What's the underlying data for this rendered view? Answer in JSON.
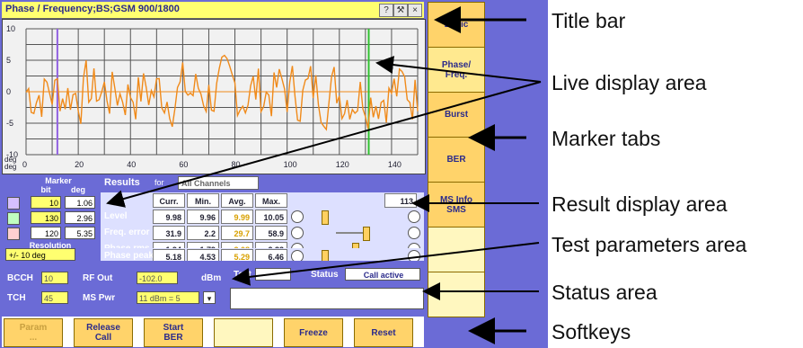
{
  "window": {
    "title": "Phase / Frequency;BS;GSM 900/1800",
    "buttons": [
      "?",
      "⚒",
      "×"
    ]
  },
  "plot": {
    "y_labels": [
      "10",
      "5",
      "0",
      "-5",
      "-10"
    ],
    "y_unit": "deg\ndeg",
    "x_labels": [
      "0",
      "20",
      "40",
      "60",
      "80",
      "100",
      "120",
      "140"
    ]
  },
  "right_tabs": [
    {
      "label": "Basic"
    },
    {
      "label": "Phase/\nFreq."
    },
    {
      "label": "Burst"
    },
    {
      "label": "BER"
    },
    {
      "label": "MS Info\nSMS"
    },
    {
      "label": ""
    },
    {
      "label": ""
    }
  ],
  "markers": {
    "title": "Marker",
    "col_bit": "bit",
    "col_deg": "deg",
    "rows": [
      {
        "bit": "10",
        "deg": "1.06"
      },
      {
        "bit": "130",
        "deg": "2.96"
      },
      {
        "bit": "120",
        "deg": "5.35"
      }
    ],
    "resolution_label": "Resolution",
    "resolution_value": "+/- 10 deg"
  },
  "results": {
    "title": "Results",
    "for_label": "for",
    "select_value": "All Channels",
    "headers": [
      "Curr.",
      "Min.",
      "Avg.",
      "Max."
    ],
    "count": "113",
    "rows": [
      {
        "label": "Level",
        "values": [
          "9.98",
          "9.96",
          "9.99",
          "10.05"
        ]
      },
      {
        "label": "Freq. error",
        "values": [
          "31.9",
          "2.2",
          "29.7",
          "58.9"
        ]
      },
      {
        "label": "Phase rms",
        "values": [
          "1.94",
          "1.79",
          "2.08",
          "2.32"
        ]
      },
      {
        "label": "Phase peak",
        "values": [
          "5.18",
          "4.53",
          "5.29",
          "6.46"
        ]
      }
    ]
  },
  "test_params": {
    "bcch_label": "BCCH",
    "bcch_value": "10",
    "tch_label": "TCH",
    "tch_value": "45",
    "rfout_label": "RF Out",
    "rfout_value": "-102.0",
    "rfout_unit": "dBm",
    "mspwr_label": "MS Pwr",
    "mspwr_value": "11 dBm = 5",
    "test_label": "Test",
    "status_label": "Status",
    "status_value": "Call active"
  },
  "softkeys": [
    {
      "label": "Param\n..."
    },
    {
      "label": "Release\nCall"
    },
    {
      "label": "Start\nBER"
    },
    {
      "label": ""
    },
    {
      "label": "Freeze"
    },
    {
      "label": "Reset"
    }
  ],
  "annotations": [
    "Title bar",
    "Live display area",
    "Marker tabs",
    "Result display area",
    "Test parameters area",
    "Status area",
    "Softkeys"
  ],
  "colors": {
    "panel": "#6b6bd6",
    "title": "#ffff70",
    "tab": "#ffd36a",
    "trace": "#f08a1a"
  }
}
